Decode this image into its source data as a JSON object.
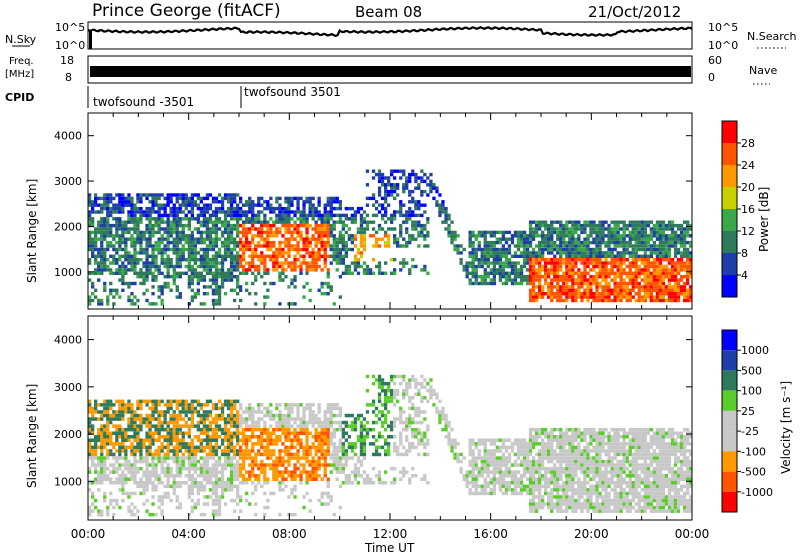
{
  "header": {
    "station": "Prince George (fitACF)",
    "beam": "Beam 08",
    "date": "21/Oct/2012"
  },
  "strips": {
    "nsky_label": "N.Sky",
    "nsearch_label": "N.Search",
    "nsky_ticks": [
      "10^5",
      "10^0"
    ],
    "freq_label_1": "Freq.",
    "freq_label_2": "[MHz]",
    "freq_ticks": [
      "18",
      "8"
    ],
    "nave_label": "Nave",
    "nave_ticks": [
      "60",
      "0"
    ],
    "cpid_label": "CPID",
    "cpid_segments": [
      {
        "text": "twofsound -3501",
        "start_hour": 0
      },
      {
        "text": "twofsound 3501",
        "start_hour": 6
      }
    ]
  },
  "colors": {
    "power": [
      "#0000ff",
      "#1f3fa8",
      "#2e7a5a",
      "#3aa84a",
      "#c8d000",
      "#ff9900",
      "#ff5500",
      "#ff0000"
    ],
    "velocity": [
      "#ff0000",
      "#ff5500",
      "#ff9900",
      "#c8c8c8",
      "#c8c8c8",
      "#5acd2a",
      "#2e7a5a",
      "#1f3fa8",
      "#0000ff"
    ],
    "trace": "#000000",
    "frame": "#000000"
  },
  "chart_data": [
    {
      "type": "heatmap",
      "name": "power",
      "ylabel": "Slant Range [km]",
      "xlabel": "",
      "x_range_hours": [
        0,
        24
      ],
      "ylim": [
        180,
        4500
      ],
      "yticks": [
        "1000",
        "2000",
        "3000",
        "4000"
      ],
      "colorbar_label": "Power [dB]",
      "colorbar_ticks": [
        "28",
        "24",
        "20",
        "16",
        "12",
        "8",
        "4"
      ],
      "colorbar_range": [
        0,
        32
      ]
    },
    {
      "type": "heatmap",
      "name": "velocity",
      "ylabel": "Slant Range [km]",
      "xlabel": "Time UT",
      "x_range_hours": [
        0,
        24
      ],
      "ylim": [
        180,
        4500
      ],
      "yticks": [
        "1000",
        "2000",
        "3000",
        "4000"
      ],
      "xticks": [
        "00:00",
        "04:00",
        "08:00",
        "12:00",
        "16:00",
        "20:00",
        "00:00"
      ],
      "colorbar_label": "Velocity [m s⁻¹]",
      "colorbar_ticks": [
        "1000",
        "500",
        "100",
        "25",
        "-25",
        "-100",
        "-500",
        "-1000"
      ]
    }
  ]
}
